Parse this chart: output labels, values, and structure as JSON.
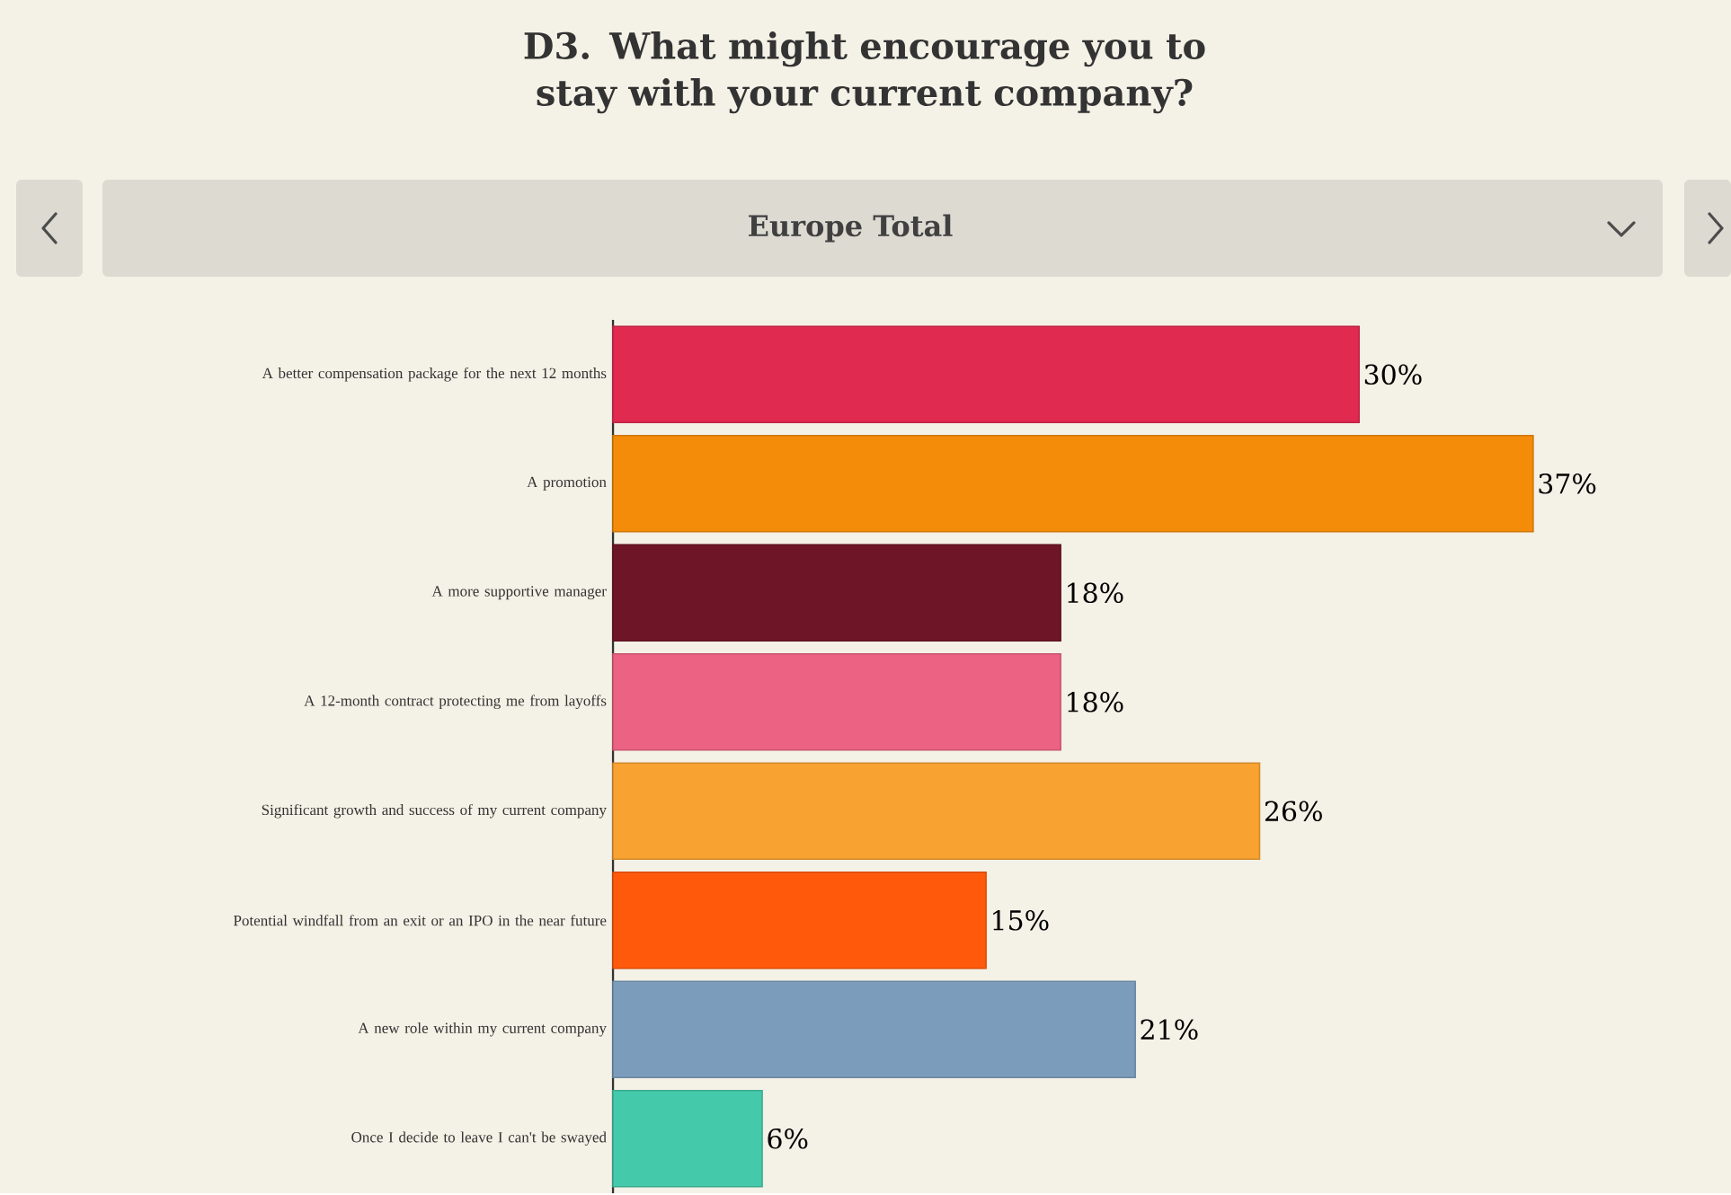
{
  "chart_data": {
    "type": "bar",
    "orientation": "horizontal",
    "title": "D3. What might encourage you to stay with your current company?",
    "subtitle": "Europe Total",
    "categories": [
      "A better compensation package for the next 12 months",
      "A promotion",
      "A more supportive manager",
      "A 12-month contract protecting me from layoffs",
      "Significant growth and success of my current company",
      "Potential windfall from an exit or an IPO in the near future",
      "A new role within my current company",
      "Once I decide to leave I can't be swayed"
    ],
    "values": [
      30,
      37,
      18,
      18,
      26,
      15,
      21,
      6
    ],
    "value_labels": [
      "30%",
      "37%",
      "18%",
      "18%",
      "26%",
      "15%",
      "21%",
      "6%"
    ],
    "colors": [
      "#e02a50",
      "#f48c0a",
      "#6e1628",
      "#ec6282",
      "#f8a232",
      "#ff5a0c",
      "#7c9cbc",
      "#44c9aa"
    ],
    "grid": false
  }
}
